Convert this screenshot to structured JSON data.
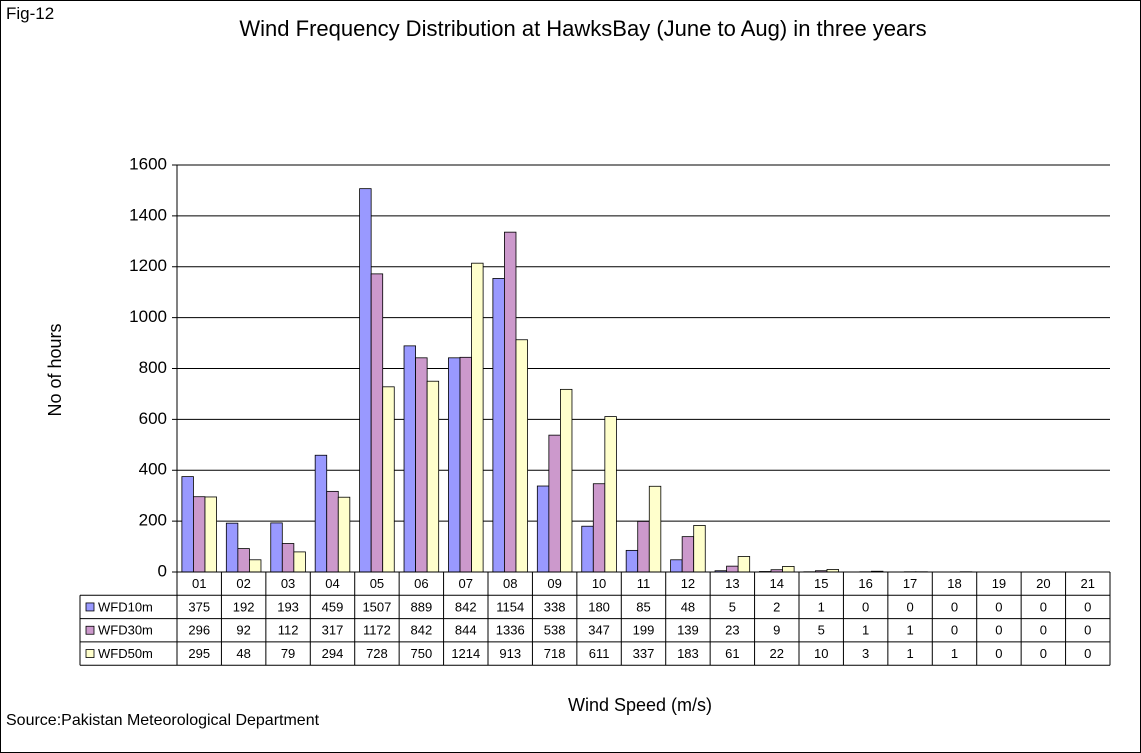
{
  "label": "Fig-12",
  "source": "Source:Pakistan Meteorological Department",
  "chart_data": {
    "type": "bar",
    "title": "Wind Frequency Distribution at HawksBay (June to Aug) in three years",
    "x_label": "Wind Speed (m/s)",
    "y_label": "No of hours",
    "categories": [
      "01",
      "02",
      "03",
      "04",
      "05",
      "06",
      "07",
      "08",
      "09",
      "10",
      "11",
      "12",
      "13",
      "14",
      "15",
      "16",
      "17",
      "18",
      "19",
      "20",
      "21"
    ],
    "series": [
      {
        "name": "WFD10m",
        "color": "#9999ff",
        "values": [
          375,
          192,
          193,
          459,
          1507,
          889,
          842,
          1154,
          338,
          180,
          85,
          48,
          5,
          2,
          1,
          0,
          0,
          0,
          0,
          0,
          0
        ]
      },
      {
        "name": "WFD30m",
        "color": "#cc99cc",
        "values": [
          296,
          92,
          112,
          317,
          1172,
          842,
          844,
          1336,
          538,
          347,
          199,
          139,
          23,
          9,
          5,
          1,
          1,
          0,
          0,
          0,
          0
        ]
      },
      {
        "name": "WFD50m",
        "color": "#ffffcc",
        "values": [
          295,
          48,
          79,
          294,
          728,
          750,
          1214,
          913,
          718,
          611,
          337,
          183,
          61,
          22,
          10,
          3,
          1,
          1,
          0,
          0,
          0
        ]
      }
    ],
    "ylim": [
      0,
      1600
    ],
    "yticks": [
      0,
      200,
      400,
      600,
      800,
      1000,
      1200,
      1400,
      1600
    ],
    "grid": true
  }
}
